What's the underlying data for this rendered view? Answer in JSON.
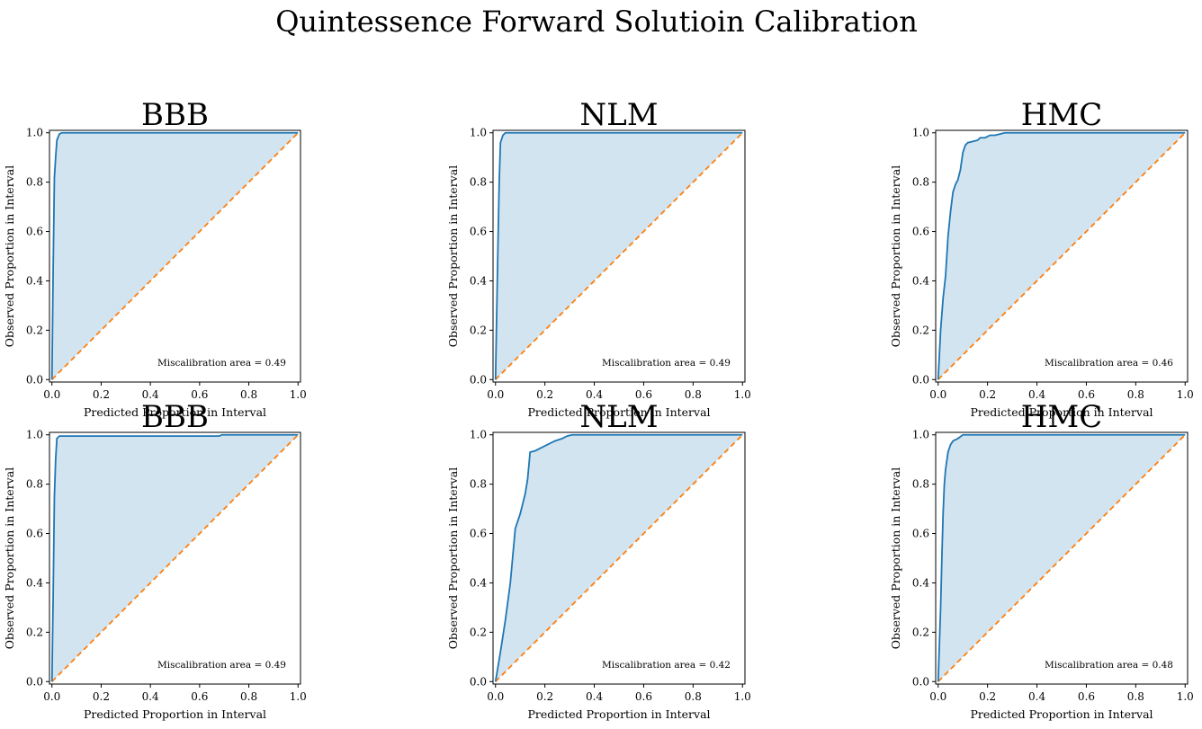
{
  "figure": {
    "title": "Quintessence Forward Solutioin Calibration"
  },
  "colors": {
    "curve": "#1f77b4",
    "ideal": "#ff7f0e",
    "fill": "#1f77b4",
    "fill_opacity": 0.2
  },
  "chart_data": [
    {
      "type": "line",
      "title": "BBB",
      "xlabel": "Predicted Proportion in Interval",
      "ylabel": "Observed Proportion in Interval",
      "xlim": [
        0,
        1
      ],
      "ylim": [
        0,
        1
      ],
      "xticks": [
        "0.0",
        "0.2",
        "0.4",
        "0.6",
        "0.8",
        "1.0"
      ],
      "yticks": [
        "0.0",
        "0.2",
        "0.4",
        "0.6",
        "0.8",
        "1.0"
      ],
      "grid": false,
      "annotation": "Miscalibration area = 0.49",
      "series": [
        {
          "x": [
            0,
            0.005,
            0.01,
            0.015,
            0.02,
            0.03,
            0.04,
            1.0
          ],
          "y": [
            0,
            0.45,
            0.82,
            0.9,
            0.97,
            0.995,
            1.0,
            1.0
          ]
        }
      ]
    },
    {
      "type": "line",
      "title": "NLM",
      "xlabel": "Predicted Proportion in Interval",
      "ylabel": "Observed Proportion in Interval",
      "xlim": [
        0,
        1
      ],
      "ylim": [
        0,
        1
      ],
      "xticks": [
        "0.0",
        "0.2",
        "0.4",
        "0.6",
        "0.8",
        "1.0"
      ],
      "yticks": [
        "0.0",
        "0.2",
        "0.4",
        "0.6",
        "0.8",
        "1.0"
      ],
      "grid": false,
      "annotation": "Miscalibration area = 0.49",
      "series": [
        {
          "x": [
            0,
            0.01,
            0.015,
            0.02,
            0.03,
            0.04,
            1.0
          ],
          "y": [
            0,
            0.55,
            0.8,
            0.96,
            0.99,
            1.0,
            1.0
          ]
        }
      ]
    },
    {
      "type": "line",
      "title": "HMC",
      "xlabel": "Predicted Proportion in Interval",
      "ylabel": "Observed Proportion in Interval",
      "xlim": [
        0,
        1
      ],
      "ylim": [
        0,
        1
      ],
      "xticks": [
        "0.0",
        "0.2",
        "0.4",
        "0.6",
        "0.8",
        "1.0"
      ],
      "yticks": [
        "0.0",
        "0.2",
        "0.4",
        "0.6",
        "0.8",
        "1.0"
      ],
      "grid": false,
      "annotation": "Miscalibration area = 0.46",
      "series": [
        {
          "x": [
            0,
            0.01,
            0.02,
            0.03,
            0.04,
            0.05,
            0.06,
            0.07,
            0.08,
            0.09,
            0.1,
            0.11,
            0.12,
            0.14,
            0.16,
            0.17,
            0.19,
            0.21,
            0.23,
            0.25,
            0.27,
            1.0
          ],
          "y": [
            0,
            0.2,
            0.33,
            0.42,
            0.58,
            0.68,
            0.76,
            0.79,
            0.81,
            0.85,
            0.92,
            0.95,
            0.96,
            0.965,
            0.97,
            0.98,
            0.98,
            0.99,
            0.99,
            0.995,
            1.0,
            1.0
          ]
        }
      ]
    },
    {
      "type": "line",
      "title": "BBB",
      "xlabel": "Predicted Proportion in Interval",
      "ylabel": "Observed Proportion in Interval",
      "xlim": [
        0,
        1
      ],
      "ylim": [
        0,
        1
      ],
      "xticks": [
        "0.0",
        "0.2",
        "0.4",
        "0.6",
        "0.8",
        "1.0"
      ],
      "yticks": [
        "0.0",
        "0.2",
        "0.4",
        "0.6",
        "0.8",
        "1.0"
      ],
      "grid": false,
      "annotation": "Miscalibration area = 0.49",
      "series": [
        {
          "x": [
            0,
            0.005,
            0.01,
            0.015,
            0.02,
            0.03,
            0.68,
            0.69,
            1.0
          ],
          "y": [
            0,
            0.35,
            0.75,
            0.9,
            0.985,
            0.995,
            0.995,
            1.0,
            1.0
          ]
        }
      ]
    },
    {
      "type": "line",
      "title": "NLM",
      "xlabel": "Predicted Proportion in Interval",
      "ylabel": "Observed Proportion in Interval",
      "xlim": [
        0,
        1
      ],
      "ylim": [
        0,
        1
      ],
      "xticks": [
        "0.0",
        "0.2",
        "0.4",
        "0.6",
        "0.8",
        "1.0"
      ],
      "yticks": [
        "0.0",
        "0.2",
        "0.4",
        "0.6",
        "0.8",
        "1.0"
      ],
      "grid": false,
      "annotation": "Miscalibration area = 0.42",
      "series": [
        {
          "x": [
            0,
            0.02,
            0.04,
            0.06,
            0.08,
            0.1,
            0.12,
            0.13,
            0.14,
            0.16,
            0.2,
            0.24,
            0.27,
            0.29,
            0.31,
            1.0
          ],
          "y": [
            0,
            0.12,
            0.25,
            0.4,
            0.62,
            0.68,
            0.76,
            0.82,
            0.93,
            0.935,
            0.955,
            0.975,
            0.985,
            0.995,
            1.0,
            1.0
          ]
        }
      ]
    },
    {
      "type": "line",
      "title": "HMC",
      "xlabel": "Predicted Proportion in Interval",
      "ylabel": "Observed Proportion in Interval",
      "xlim": [
        0,
        1
      ],
      "ylim": [
        0,
        1
      ],
      "xticks": [
        "0.0",
        "0.2",
        "0.4",
        "0.6",
        "0.8",
        "1.0"
      ],
      "yticks": [
        "0.0",
        "0.2",
        "0.4",
        "0.6",
        "0.8",
        "1.0"
      ],
      "grid": false,
      "annotation": "Miscalibration area = 0.48",
      "series": [
        {
          "x": [
            0,
            0.01,
            0.015,
            0.02,
            0.025,
            0.03,
            0.04,
            0.05,
            0.06,
            0.08,
            0.1,
            0.68,
            0.69,
            1.0
          ],
          "y": [
            0,
            0.3,
            0.5,
            0.68,
            0.8,
            0.86,
            0.93,
            0.96,
            0.975,
            0.985,
            1.0,
            1.0,
            1.0,
            1.0
          ]
        }
      ]
    }
  ]
}
